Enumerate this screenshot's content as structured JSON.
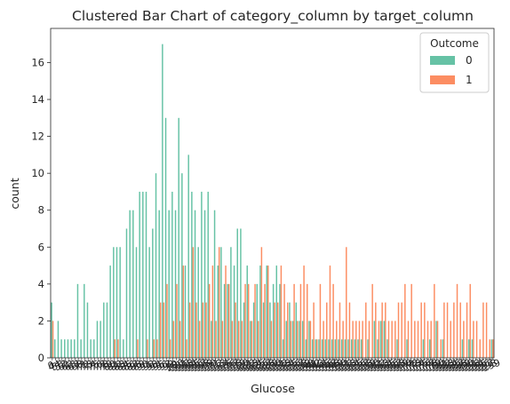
{
  "chart_data": {
    "type": "bar",
    "title": "Clustered Bar Chart of category_column by target_column",
    "xlabel": "Glucose",
    "ylabel": "count",
    "ylim": [
      0,
      17.85
    ],
    "yticks": [
      0,
      2,
      4,
      6,
      8,
      10,
      12,
      14,
      16
    ],
    "legend": {
      "title": "Outcome",
      "placement": "top-right",
      "entries": [
        "0",
        "1"
      ]
    },
    "colors": {
      "0": "#66c2a5",
      "1": "#fc8d62"
    },
    "categories": [
      0,
      44,
      56,
      57,
      61,
      62,
      65,
      67,
      68,
      71,
      72,
      73,
      74,
      75,
      76,
      77,
      78,
      79,
      80,
      81,
      82,
      83,
      84,
      85,
      86,
      87,
      88,
      89,
      90,
      91,
      92,
      93,
      94,
      95,
      96,
      97,
      98,
      99,
      100,
      101,
      102,
      103,
      104,
      105,
      106,
      107,
      108,
      109,
      110,
      111,
      112,
      113,
      114,
      115,
      116,
      117,
      118,
      119,
      120,
      121,
      122,
      123,
      124,
      125,
      126,
      127,
      128,
      129,
      130,
      131,
      132,
      133,
      134,
      135,
      136,
      137,
      138,
      139,
      140,
      141,
      142,
      143,
      144,
      145,
      146,
      147,
      148,
      149,
      150,
      151,
      152,
      153,
      154,
      155,
      156,
      157,
      158,
      159,
      160,
      161,
      162,
      163,
      164,
      165,
      166,
      167,
      168,
      169,
      170,
      171,
      172,
      173,
      174,
      175,
      176,
      177,
      178,
      179,
      180,
      181,
      182,
      183,
      184,
      186,
      187,
      188,
      189,
      190,
      191,
      193,
      194,
      195,
      196,
      197,
      198,
      199
    ],
    "series": [
      {
        "name": "0",
        "values": [
          3,
          1,
          2,
          1,
          1,
          1,
          1,
          1,
          4,
          1,
          4,
          3,
          1,
          1,
          2,
          2,
          3,
          3,
          5,
          6,
          6,
          6,
          1,
          7,
          8,
          8,
          6,
          9,
          9,
          9,
          6,
          7,
          10,
          8,
          17,
          13,
          8,
          9,
          8,
          13,
          10,
          5,
          11,
          9,
          8,
          6,
          9,
          8,
          9,
          2,
          8,
          5,
          6,
          4,
          4,
          6,
          5,
          7,
          7,
          3,
          5,
          2,
          3,
          4,
          5,
          3,
          5,
          3,
          4,
          5,
          4,
          1,
          2,
          3,
          2,
          3,
          2,
          2,
          1,
          2,
          1,
          1,
          1,
          1,
          1,
          1,
          1,
          1,
          1,
          1,
          1,
          1,
          1,
          1,
          1,
          1,
          0,
          1,
          0,
          2,
          1,
          2,
          2,
          1,
          0,
          0,
          1,
          0,
          0,
          1,
          0,
          0,
          0,
          0,
          1,
          0,
          1,
          0,
          2,
          0,
          1,
          0,
          0,
          0,
          0,
          0,
          1,
          0,
          1,
          1,
          0,
          0,
          0,
          0,
          0,
          1
        ]
      },
      {
        "name": "1",
        "values": [
          2,
          0,
          0,
          0,
          0,
          0,
          0,
          0,
          0,
          0,
          0,
          0,
          0,
          0,
          0,
          0,
          0,
          0,
          0,
          1,
          1,
          0,
          0,
          0,
          0,
          0,
          1,
          0,
          0,
          1,
          0,
          1,
          1,
          3,
          3,
          4,
          1,
          2,
          4,
          2,
          5,
          1,
          3,
          6,
          3,
          2,
          3,
          3,
          4,
          5,
          2,
          6,
          2,
          5,
          4,
          2,
          3,
          2,
          2,
          4,
          4,
          2,
          4,
          2,
          6,
          4,
          5,
          2,
          3,
          3,
          5,
          4,
          3,
          2,
          4,
          2,
          4,
          5,
          4,
          2,
          3,
          1,
          4,
          2,
          3,
          5,
          4,
          2,
          3,
          2,
          6,
          3,
          2,
          2,
          2,
          2,
          3,
          2,
          4,
          3,
          2,
          3,
          3,
          2,
          2,
          2,
          3,
          3,
          4,
          2,
          4,
          2,
          2,
          3,
          3,
          2,
          2,
          4,
          2,
          1,
          3,
          3,
          2,
          3,
          4,
          3,
          2,
          3,
          4,
          2,
          2,
          1,
          3,
          3,
          1,
          1
        ]
      }
    ]
  }
}
